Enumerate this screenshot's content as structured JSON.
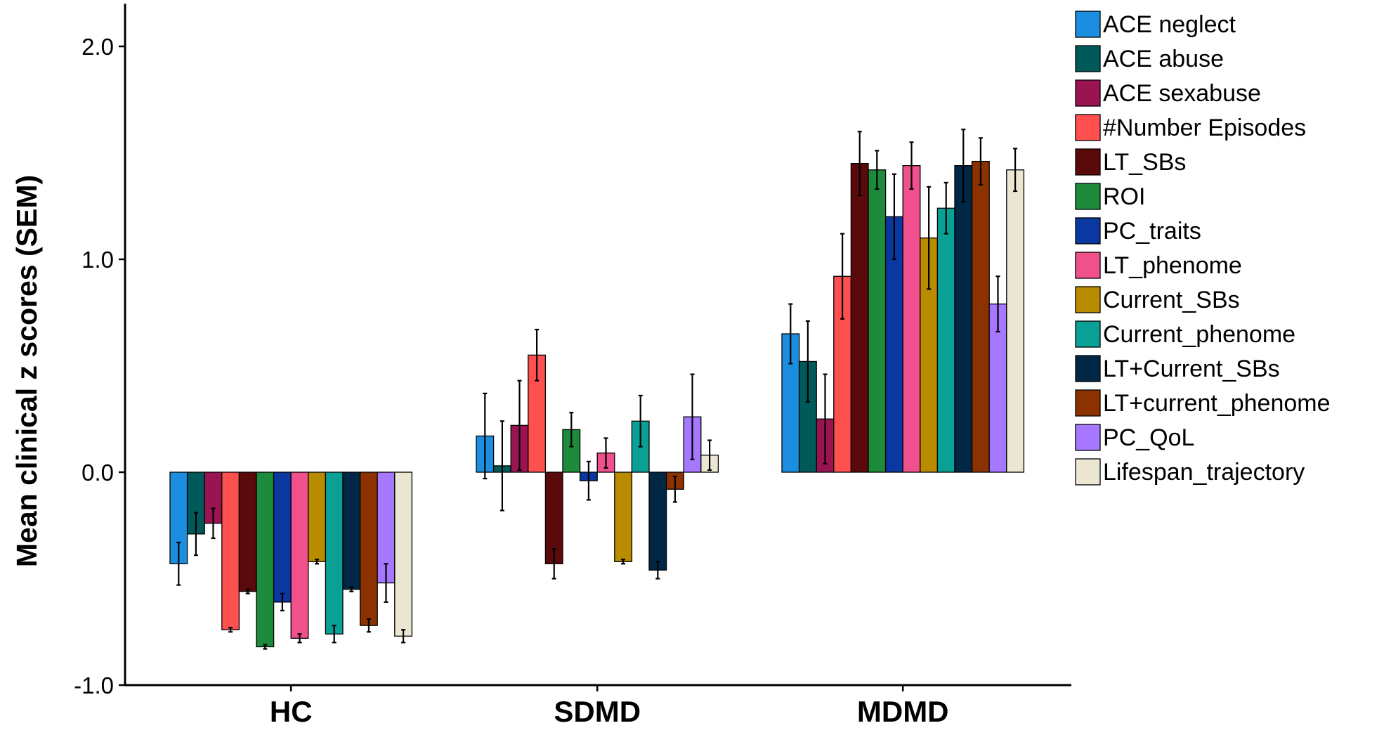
{
  "chart_data": {
    "type": "bar",
    "ylabel": "Mean clinical z scores (SEM)",
    "ylim": [
      -1.0,
      2.2
    ],
    "yticks": [
      -1.0,
      0.0,
      1.0,
      2.0
    ],
    "ytick_labels": [
      "-1.0",
      "0.0",
      "1.0",
      "2.0"
    ],
    "categories": [
      "HC",
      "SDMD",
      "MDMD"
    ],
    "legend_position": "right",
    "error_bars": "SEM",
    "series": [
      {
        "name": "ACE neglect",
        "color": "#1b8ee0",
        "values": [
          -0.43,
          0.17,
          0.65
        ],
        "errors": [
          0.1,
          0.2,
          0.14
        ]
      },
      {
        "name": "ACE abuse",
        "color": "#005a5a",
        "values": [
          -0.29,
          0.03,
          0.52
        ],
        "errors": [
          0.1,
          0.21,
          0.19
        ]
      },
      {
        "name": "ACE sexabuse",
        "color": "#9b1452",
        "values": [
          -0.24,
          0.22,
          0.25
        ],
        "errors": [
          0.07,
          0.21,
          0.21
        ]
      },
      {
        "name": "#Number Episodes",
        "color": "#ff5050",
        "values": [
          -0.74,
          0.55,
          0.92
        ],
        "errors": [
          0.01,
          0.12,
          0.2
        ]
      },
      {
        "name": "LT_SBs",
        "color": "#5a0a0a",
        "values": [
          -0.56,
          -0.43,
          1.45
        ],
        "errors": [
          0.01,
          0.07,
          0.15
        ]
      },
      {
        "name": "ROI",
        "color": "#1e8a3c",
        "values": [
          -0.82,
          0.2,
          1.42
        ],
        "errors": [
          0.01,
          0.08,
          0.09
        ]
      },
      {
        "name": "PC_traits",
        "color": "#0a37a0",
        "values": [
          -0.61,
          -0.04,
          1.2
        ],
        "errors": [
          0.04,
          0.09,
          0.2
        ]
      },
      {
        "name": "LT_phenome",
        "color": "#f0508c",
        "values": [
          -0.78,
          0.09,
          1.44
        ],
        "errors": [
          0.02,
          0.07,
          0.11
        ]
      },
      {
        "name": "Current_SBs",
        "color": "#b98c00",
        "values": [
          -0.42,
          -0.42,
          1.1
        ],
        "errors": [
          0.01,
          0.01,
          0.24
        ]
      },
      {
        "name": "Current_phenome",
        "color": "#0aa096",
        "values": [
          -0.76,
          0.24,
          1.24
        ],
        "errors": [
          0.04,
          0.12,
          0.12
        ]
      },
      {
        "name": "LT+Current_SBs",
        "color": "#002846",
        "values": [
          -0.55,
          -0.46,
          1.44
        ],
        "errors": [
          0.01,
          0.04,
          0.17
        ]
      },
      {
        "name": "LT+current_phenome",
        "color": "#8c3200",
        "values": [
          -0.72,
          -0.08,
          1.46
        ],
        "errors": [
          0.03,
          0.06,
          0.11
        ]
      },
      {
        "name": "PC_QoL",
        "color": "#a578ff",
        "values": [
          -0.52,
          0.26,
          0.79
        ],
        "errors": [
          0.09,
          0.2,
          0.13
        ]
      },
      {
        "name": "Lifespan_trajectory",
        "color": "#ebe6d2",
        "values": [
          -0.77,
          0.08,
          1.42
        ],
        "errors": [
          0.03,
          0.07,
          0.1
        ]
      }
    ]
  }
}
